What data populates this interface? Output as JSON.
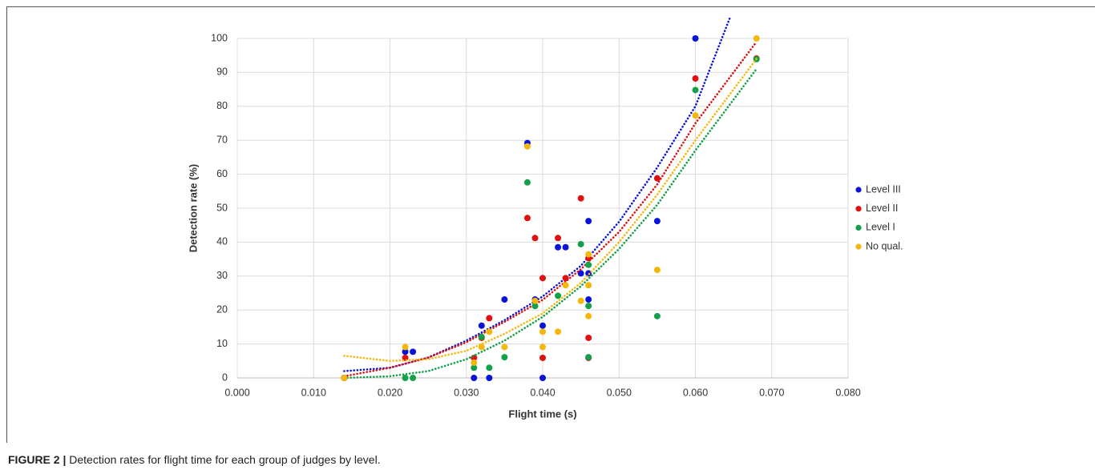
{
  "chart_data": {
    "type": "scatter",
    "x_label": "Flight time (s)",
    "y_label": "Detection rate (%)",
    "xlim": [
      0,
      0.08
    ],
    "ylim": [
      0,
      100
    ],
    "xticks": [
      {
        "value": 0,
        "label": "0.000"
      },
      {
        "value": 0.01,
        "label": "0.010"
      },
      {
        "value": 0.02,
        "label": "0.020"
      },
      {
        "value": 0.03,
        "label": "0.030"
      },
      {
        "value": 0.04,
        "label": "0.040"
      },
      {
        "value": 0.05,
        "label": "0.050"
      },
      {
        "value": 0.06,
        "label": "0.060"
      },
      {
        "value": 0.07,
        "label": "0.070"
      },
      {
        "value": 0.08,
        "label": "0.080"
      }
    ],
    "yticks": [
      0,
      10,
      20,
      30,
      40,
      50,
      60,
      70,
      80,
      90,
      100
    ],
    "grid": true,
    "legend": "right",
    "series": [
      {
        "name": "Level III",
        "color": "#0a14d8",
        "x": [
          0.014,
          0.022,
          0.023,
          0.031,
          0.032,
          0.033,
          0.035,
          0.038,
          0.039,
          0.04,
          0.04,
          0.042,
          0.043,
          0.045,
          0.046,
          0.046,
          0.046,
          0.055,
          0.06
        ],
        "values": [
          0,
          7.7,
          7.7,
          0,
          15.4,
          0,
          23.1,
          69.2,
          23.1,
          15.4,
          0,
          38.5,
          38.5,
          30.8,
          30.8,
          46.2,
          23.1,
          46.2,
          100
        ],
        "trend": {
          "x": [
            0.014,
            0.02,
            0.025,
            0.03,
            0.035,
            0.04,
            0.045,
            0.05,
            0.055,
            0.06,
            0.0645
          ],
          "values": [
            2,
            3,
            6,
            11,
            17,
            24,
            33,
            46,
            62,
            80,
            106
          ]
        }
      },
      {
        "name": "Level II",
        "color": "#e01010",
        "x": [
          0.014,
          0.022,
          0.031,
          0.032,
          0.033,
          0.038,
          0.039,
          0.04,
          0.04,
          0.042,
          0.043,
          0.045,
          0.046,
          0.046,
          0.046,
          0.055,
          0.06,
          0.068
        ],
        "values": [
          0,
          5.9,
          5.9,
          11.8,
          17.6,
          47.1,
          41.2,
          29.4,
          5.9,
          41.2,
          29.4,
          52.9,
          35.3,
          11.8,
          5.9,
          58.8,
          88.2,
          94.1
        ],
        "trend": {
          "x": [
            0.014,
            0.02,
            0.025,
            0.03,
            0.035,
            0.04,
            0.045,
            0.05,
            0.055,
            0.06,
            0.068
          ],
          "values": [
            0.5,
            3,
            6,
            10.5,
            16.5,
            23,
            32,
            43,
            57,
            75,
            99
          ]
        }
      },
      {
        "name": "Level I",
        "color": "#12a04a",
        "x": [
          0.014,
          0.022,
          0.023,
          0.031,
          0.032,
          0.033,
          0.035,
          0.038,
          0.039,
          0.042,
          0.045,
          0.046,
          0.046,
          0.046,
          0.055,
          0.06,
          0.068
        ],
        "values": [
          0,
          0,
          0,
          3,
          12.1,
          3,
          6.1,
          57.6,
          21.2,
          24.2,
          39.4,
          33.3,
          21.2,
          6.1,
          18.2,
          84.8,
          93.9
        ],
        "trend": {
          "x": [
            0.014,
            0.02,
            0.025,
            0.03,
            0.035,
            0.04,
            0.045,
            0.05,
            0.055,
            0.06,
            0.068
          ],
          "values": [
            0,
            0.5,
            2,
            5.5,
            11,
            18,
            27,
            38,
            51,
            67,
            91
          ]
        }
      },
      {
        "name": "No qual.",
        "color": "#f5b80a",
        "x": [
          0.014,
          0.022,
          0.031,
          0.032,
          0.033,
          0.035,
          0.038,
          0.039,
          0.04,
          0.04,
          0.042,
          0.043,
          0.045,
          0.046,
          0.046,
          0.046,
          0.055,
          0.06,
          0.068
        ],
        "values": [
          0,
          9.1,
          4.5,
          9.1,
          13.6,
          9.1,
          68.2,
          22.7,
          13.6,
          9.1,
          13.6,
          27.3,
          22.7,
          36.4,
          27.3,
          18.2,
          31.8,
          77.3,
          100
        ],
        "trend": {
          "x": [
            0.014,
            0.02,
            0.025,
            0.03,
            0.035,
            0.04,
            0.045,
            0.05,
            0.055,
            0.06,
            0.068
          ],
          "values": [
            6.5,
            5,
            5.5,
            8,
            13,
            19,
            28,
            40,
            54,
            70,
            94
          ]
        }
      }
    ]
  },
  "caption": {
    "label": "FIGURE 2 |",
    "text": "Detection rates for flight time for each group of judges by level."
  }
}
